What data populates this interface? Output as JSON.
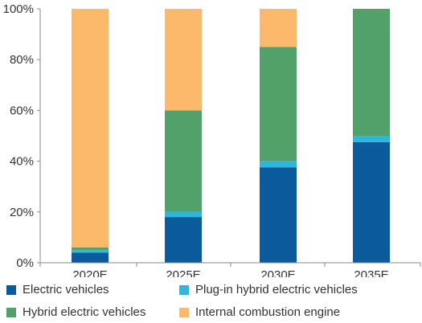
{
  "chart_data": {
    "type": "bar",
    "stacked": true,
    "categories": [
      "2020E",
      "2025E",
      "2030E",
      "2035E"
    ],
    "series": [
      {
        "name": "Electric vehicles",
        "color": "#0a5a9c",
        "values": [
          4,
          18,
          37.5,
          47.5
        ]
      },
      {
        "name": "Plug-in hybrid electric vehicles",
        "color": "#2fb6dc",
        "values": [
          1,
          2,
          2.5,
          2.5
        ]
      },
      {
        "name": "Hybrid electric vehicles",
        "color": "#52a06a",
        "values": [
          1,
          40,
          45,
          50
        ]
      },
      {
        "name": "Internal combustion engine",
        "color": "#fdb96b",
        "values": [
          94,
          40,
          15,
          0
        ]
      }
    ],
    "y_ticks": [
      "0%",
      "20%",
      "40%",
      "60%",
      "80%",
      "100%"
    ],
    "ylim": [
      0,
      100
    ],
    "grid": false,
    "legend_position": "bottom",
    "title": "",
    "xlabel": "",
    "ylabel": ""
  }
}
